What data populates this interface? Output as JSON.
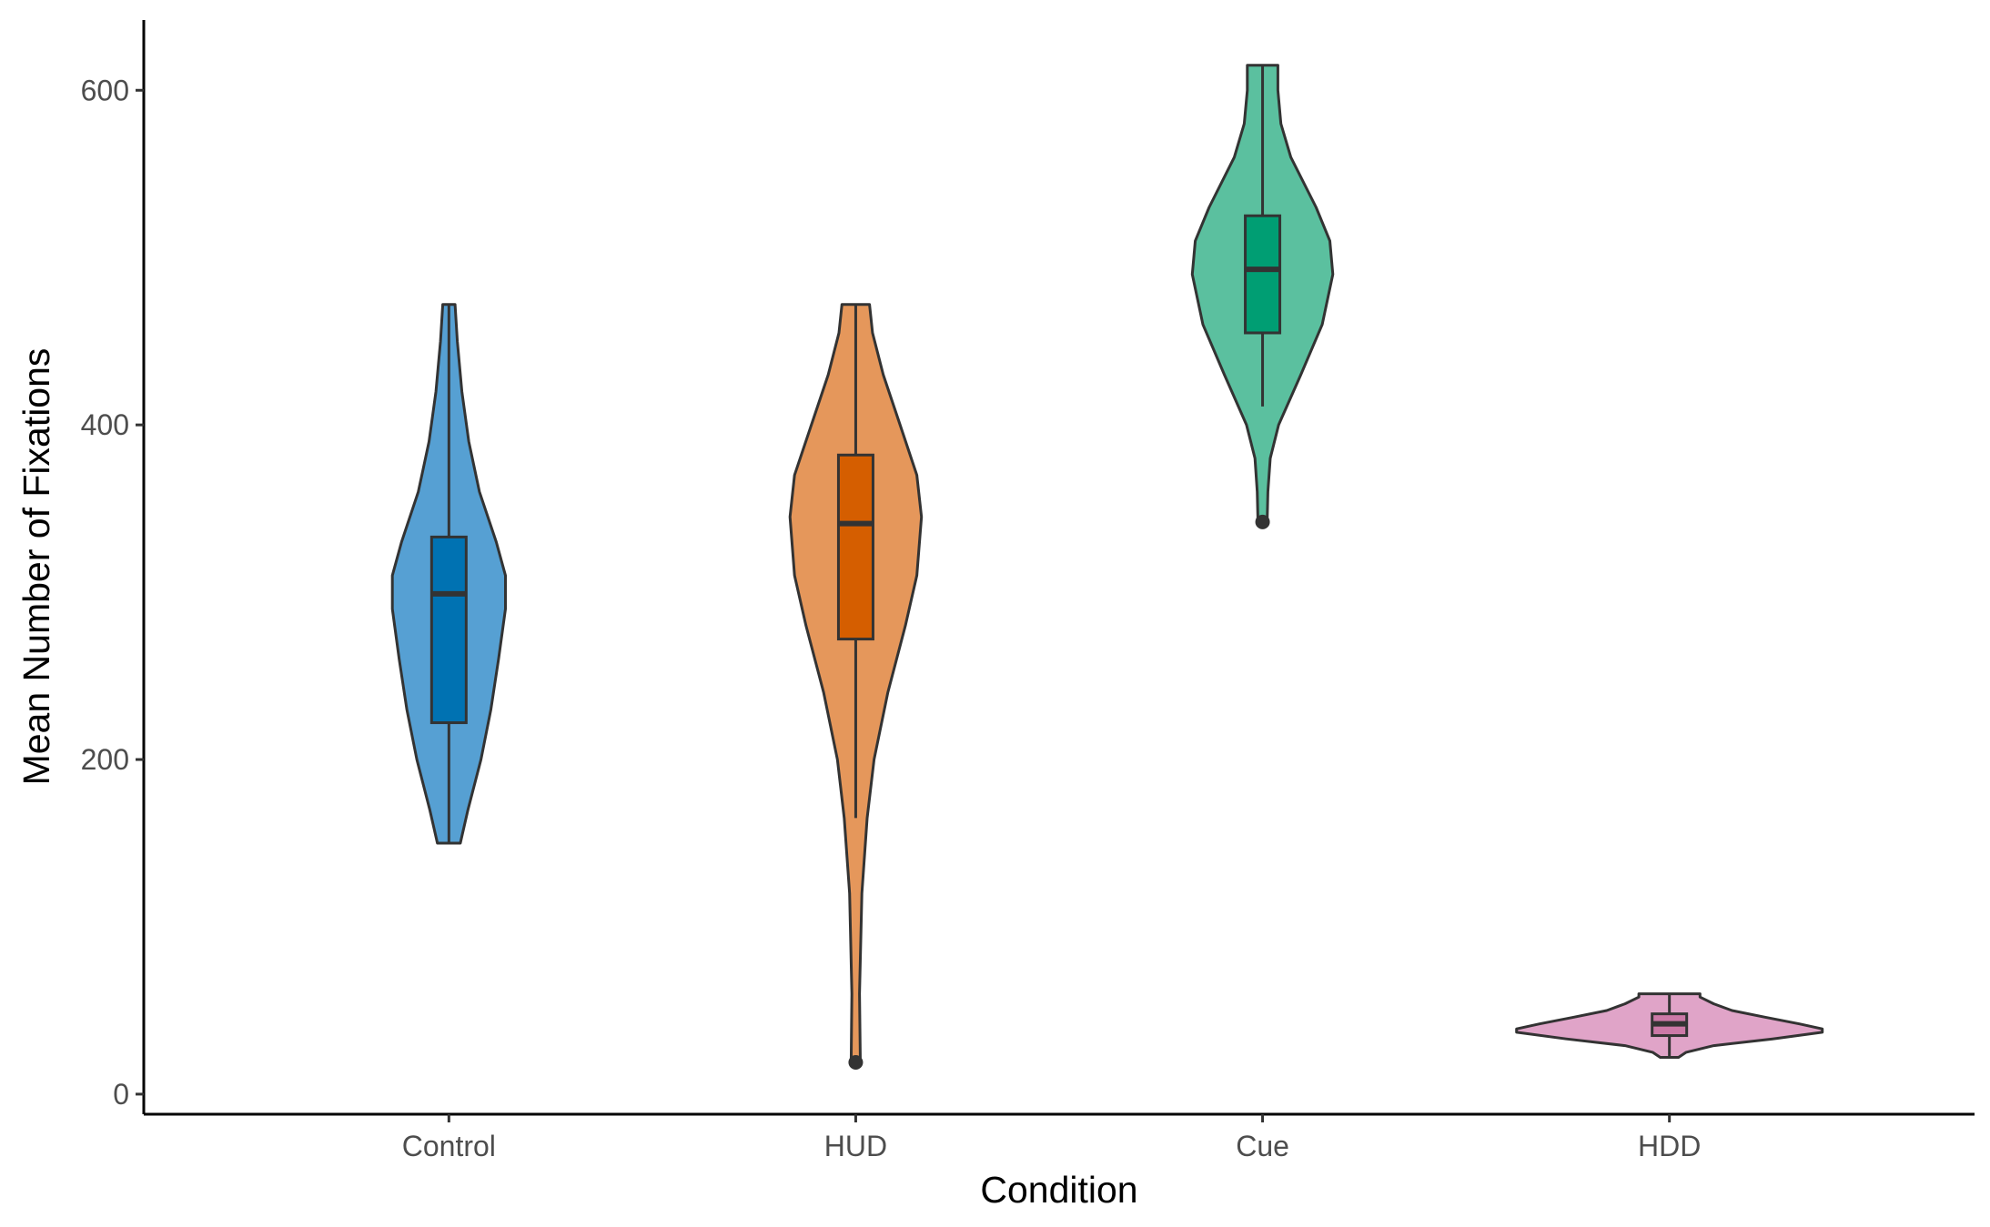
{
  "chart_data": {
    "type": "violin",
    "xlabel": "Condition",
    "ylabel": "Mean Number of Fixations",
    "ylim": [
      -12,
      642
    ],
    "y_ticks": [
      0,
      200,
      400,
      600
    ],
    "categories": [
      "Control",
      "HUD",
      "Cue",
      "HDD"
    ],
    "grid": false,
    "legend": "none",
    "groups": [
      {
        "category": "Control",
        "fill_violin": "#56a0d3",
        "fill_box": "#0072b2",
        "min": 150,
        "max": 472,
        "box": {
          "q1": 222,
          "median": 299,
          "q3": 333,
          "whisker_low": 150,
          "whisker_high": 472
        },
        "outliers": [],
        "density_profile": [
          {
            "y": 150,
            "w": 0.15
          },
          {
            "y": 170,
            "w": 0.25
          },
          {
            "y": 200,
            "w": 0.42
          },
          {
            "y": 230,
            "w": 0.55
          },
          {
            "y": 260,
            "w": 0.65
          },
          {
            "y": 290,
            "w": 0.74
          },
          {
            "y": 310,
            "w": 0.74
          },
          {
            "y": 330,
            "w": 0.62
          },
          {
            "y": 360,
            "w": 0.4
          },
          {
            "y": 390,
            "w": 0.26
          },
          {
            "y": 420,
            "w": 0.17
          },
          {
            "y": 450,
            "w": 0.11
          },
          {
            "y": 472,
            "w": 0.08
          }
        ]
      },
      {
        "category": "HUD",
        "fill_violin": "#e5975b",
        "fill_box": "#d55e00",
        "min": 19,
        "max": 472,
        "box": {
          "q1": 272,
          "median": 341,
          "q3": 382,
          "whisker_low": 165,
          "whisker_high": 472
        },
        "outliers": [
          19
        ],
        "density_profile": [
          {
            "y": 19,
            "w": 0.06
          },
          {
            "y": 60,
            "w": 0.05
          },
          {
            "y": 120,
            "w": 0.08
          },
          {
            "y": 165,
            "w": 0.15
          },
          {
            "y": 200,
            "w": 0.24
          },
          {
            "y": 240,
            "w": 0.42
          },
          {
            "y": 280,
            "w": 0.65
          },
          {
            "y": 310,
            "w": 0.8
          },
          {
            "y": 345,
            "w": 0.86
          },
          {
            "y": 370,
            "w": 0.8
          },
          {
            "y": 400,
            "w": 0.58
          },
          {
            "y": 430,
            "w": 0.36
          },
          {
            "y": 455,
            "w": 0.22
          },
          {
            "y": 472,
            "w": 0.18
          }
        ]
      },
      {
        "category": "Cue",
        "fill_violin": "#5bc09f",
        "fill_box": "#009e73",
        "min": 342,
        "max": 615,
        "box": {
          "q1": 455,
          "median": 493,
          "q3": 525,
          "whisker_low": 411,
          "whisker_high": 615
        },
        "outliers": [
          342
        ],
        "density_profile": [
          {
            "y": 342,
            "w": 0.06
          },
          {
            "y": 360,
            "w": 0.07
          },
          {
            "y": 380,
            "w": 0.1
          },
          {
            "y": 400,
            "w": 0.21
          },
          {
            "y": 430,
            "w": 0.5
          },
          {
            "y": 460,
            "w": 0.78
          },
          {
            "y": 490,
            "w": 0.92
          },
          {
            "y": 510,
            "w": 0.88
          },
          {
            "y": 530,
            "w": 0.7
          },
          {
            "y": 560,
            "w": 0.37
          },
          {
            "y": 580,
            "w": 0.24
          },
          {
            "y": 600,
            "w": 0.2
          },
          {
            "y": 615,
            "w": 0.2
          }
        ]
      },
      {
        "category": "HDD",
        "fill_violin": "#e0a4c8",
        "fill_box": "#cc79a7",
        "min": 22,
        "max": 60,
        "box": {
          "q1": 35,
          "median": 42,
          "q3": 48,
          "whisker_low": 22,
          "whisker_high": 60
        },
        "outliers": [],
        "density_profile": [
          {
            "y": 22,
            "w": 0.12
          },
          {
            "y": 25,
            "w": 0.22
          },
          {
            "y": 29,
            "w": 0.58
          },
          {
            "y": 33,
            "w": 1.35
          },
          {
            "y": 37,
            "w": 2.0
          },
          {
            "y": 39,
            "w": 2.0
          },
          {
            "y": 42,
            "w": 1.7
          },
          {
            "y": 46,
            "w": 1.25
          },
          {
            "y": 50,
            "w": 0.82
          },
          {
            "y": 54,
            "w": 0.58
          },
          {
            "y": 58,
            "w": 0.4
          },
          {
            "y": 60,
            "w": 0.4
          }
        ]
      }
    ]
  }
}
